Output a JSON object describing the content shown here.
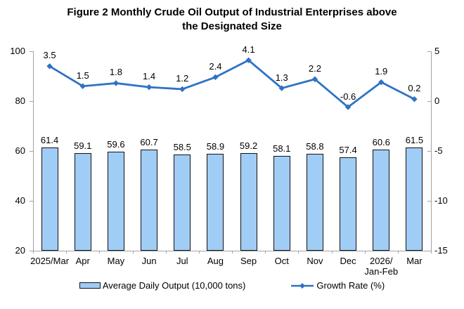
{
  "title": {
    "lines": [
      "Figure 2 Monthly Crude Oil Output of Industrial Enterprises above",
      "the Designated Size"
    ]
  },
  "chart_data": {
    "type": "bar+line",
    "categories": [
      "2025/Mar",
      "Apr",
      "May",
      "Jun",
      "Jul",
      "Aug",
      "Sep",
      "Oct",
      "Nov",
      "Dec",
      "2026/\nJan-Feb",
      "Mar"
    ],
    "series": [
      {
        "name": "Average Daily Output (10,000 tons)",
        "type": "bar",
        "axis": "left",
        "fill": "#A0CDF5",
        "border": "#111111",
        "values": [
          61.4,
          59.1,
          59.6,
          60.7,
          58.5,
          58.9,
          59.2,
          58.1,
          58.8,
          57.4,
          60.6,
          61.5
        ]
      },
      {
        "name": "Growth Rate (%)",
        "type": "line",
        "axis": "right",
        "color": "#2E73C4",
        "marker": "diamond",
        "values": [
          3.5,
          1.5,
          1.8,
          1.4,
          1.2,
          2.4,
          4.1,
          1.3,
          2.2,
          -0.6,
          1.9,
          0.2
        ]
      }
    ],
    "left_axis": {
      "min": 20,
      "max": 100,
      "ticks": [
        100,
        80,
        60,
        40,
        20
      ]
    },
    "right_axis": {
      "min": -15,
      "max": 5,
      "ticks": [
        5,
        0,
        -5,
        -10,
        -15
      ]
    },
    "grid": false,
    "legend_position": "bottom"
  }
}
